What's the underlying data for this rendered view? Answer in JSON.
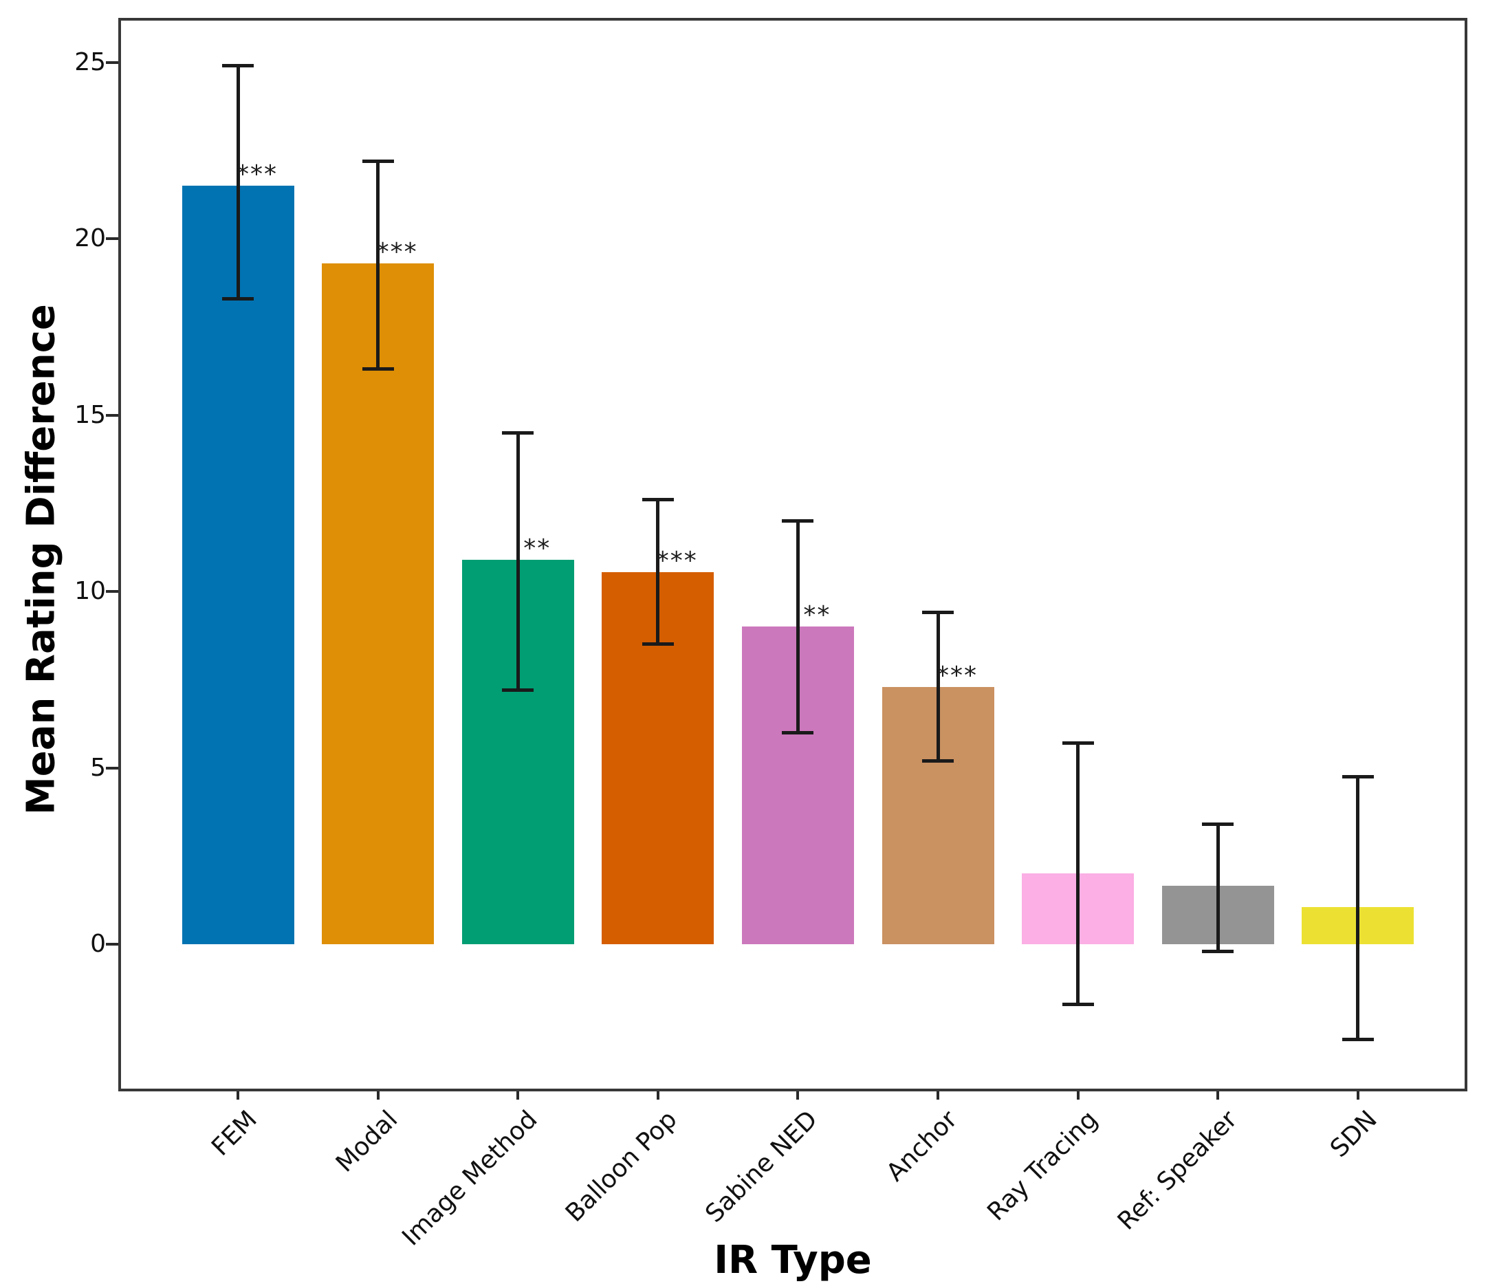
{
  "chart_data": {
    "type": "bar",
    "title": "",
    "xlabel": "IR Type",
    "ylabel": "Mean Rating Difference",
    "categories": [
      "FEM",
      "Modal",
      "Image Method",
      "Balloon Pop",
      "Sabine NED",
      "Anchor",
      "Ray Tracing",
      "Ref: Speaker",
      "SDN"
    ],
    "values": [
      21.5,
      19.3,
      10.9,
      10.55,
      9.0,
      7.3,
      2.0,
      1.65,
      1.05
    ],
    "ci_low": [
      18.3,
      16.3,
      7.2,
      8.5,
      6.0,
      5.2,
      -1.7,
      -0.2,
      -2.7
    ],
    "ci_high": [
      24.9,
      22.2,
      14.5,
      12.6,
      12.0,
      9.4,
      5.7,
      3.4,
      4.75
    ],
    "significance": [
      "***",
      "***",
      "**",
      "***",
      "**",
      "***",
      "",
      "",
      ""
    ],
    "bar_colors": [
      "#0173b2",
      "#de8f05",
      "#029e73",
      "#d55e00",
      "#cc78bc",
      "#ca9161",
      "#fbafe4",
      "#949494",
      "#ece133"
    ],
    "error_bar_color": "#1a1a1a",
    "yticks": [
      0,
      5,
      10,
      15,
      20,
      25
    ],
    "ylim": [
      -4.1,
      26.2
    ],
    "grid": false,
    "legend": null
  }
}
